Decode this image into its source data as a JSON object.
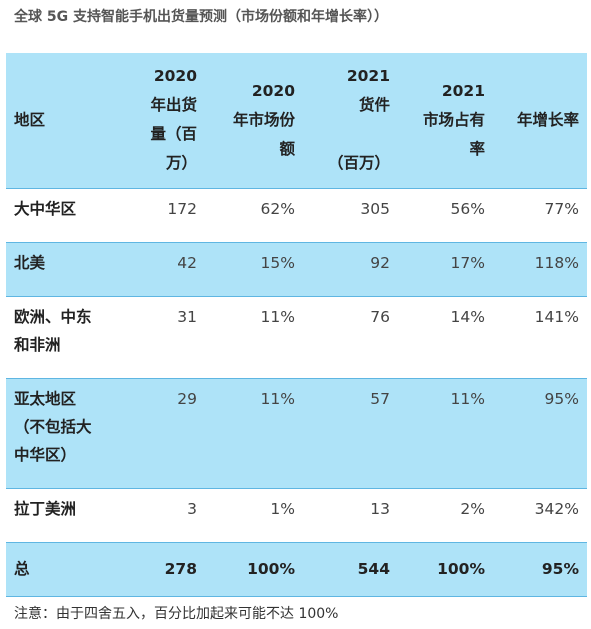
{
  "title": "全球 5G 支持智能手机出货量预测（市场份额和年增长率））",
  "table": {
    "headers": [
      "地区",
      "2020\n年出货\n量（百\n万）",
      "2020\n年市场份\n额",
      "2021\n货件\n\n（百万）",
      "2021\n市场占有\n率",
      "年增长率"
    ],
    "rows": [
      {
        "region": "大中华区",
        "v2020": "172",
        "s2020": "62%",
        "v2021": "305",
        "s2021": "56%",
        "growth": "77%"
      },
      {
        "region": "北美",
        "v2020": "42",
        "s2020": "15%",
        "v2021": "92",
        "s2021": "17%",
        "growth": "118%"
      },
      {
        "region": "欧洲、中东\n和非洲",
        "v2020": "31",
        "s2020": "11%",
        "v2021": "76",
        "s2021": "14%",
        "growth": "141%"
      },
      {
        "region": "亚太地区\n（不包括大\n中华区）",
        "v2020": "29",
        "s2020": "11%",
        "v2021": "57",
        "s2021": "11%",
        "growth": "95%"
      },
      {
        "region": "拉丁美洲",
        "v2020": "3",
        "s2020": "1%",
        "v2021": "13",
        "s2021": "2%",
        "growth": "342%"
      }
    ],
    "total": {
      "region": "总",
      "v2020": "278",
      "s2020": "100%",
      "v2021": "544",
      "s2021": "100%",
      "growth": "95%"
    }
  },
  "note": "注意：由于四舍五入，百分比加起来可能不达 100%",
  "colors": {
    "header_bg": "#aee3f8",
    "alt_row_bg": "#aee3f8",
    "border": "#5fb6e2"
  }
}
